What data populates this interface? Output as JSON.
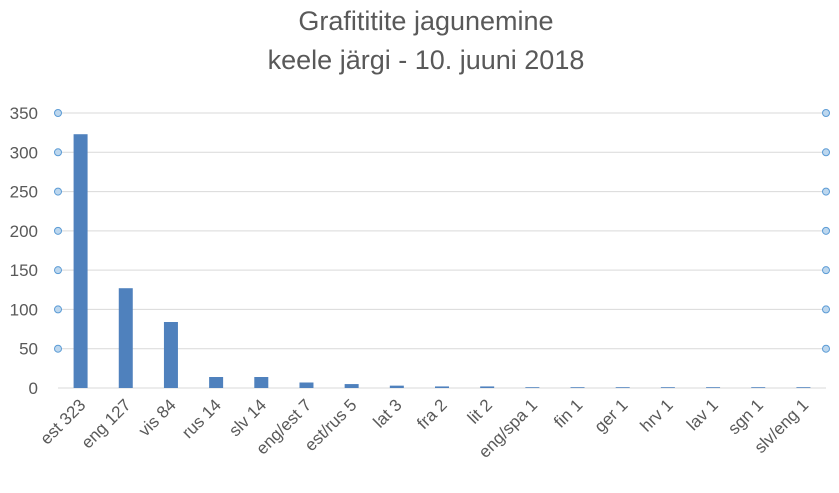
{
  "chart_data": {
    "type": "bar",
    "title_lines": [
      "Grafititite jagunemine",
      "keele järgi - 10. juuni 2018"
    ],
    "categories": [
      "est 323",
      "eng 127",
      "vis 84",
      "rus 14",
      "slv 14",
      "eng/est 7",
      "est/rus 5",
      "lat 3",
      "fra 2",
      "lit 2",
      "eng/spa 1",
      "fin 1",
      "ger 1",
      "hrv 1",
      "lav 1",
      "sgn 1",
      "slv/eng 1"
    ],
    "values": [
      323,
      127,
      84,
      14,
      14,
      7,
      5,
      3,
      2,
      2,
      1,
      1,
      1,
      1,
      1,
      1,
      1
    ],
    "ylim": [
      0,
      350
    ],
    "yticks": [
      0,
      50,
      100,
      150,
      200,
      250,
      300,
      350
    ],
    "grid": true,
    "colors": {
      "bar": "#4f81bd",
      "grid": "#d9d9d9",
      "text": "#595959",
      "marker": "#5b9bd5",
      "marker_fill": "#bdd7ee"
    }
  }
}
